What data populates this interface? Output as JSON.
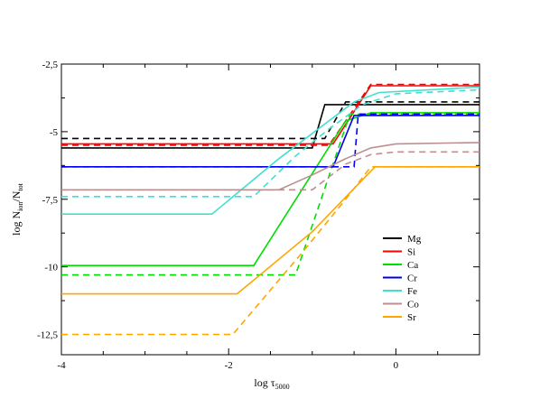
{
  "chart_data": {
    "type": "line",
    "title": "",
    "xlabel": {
      "main": "log τ",
      "sub": "5000"
    },
    "ylabel": {
      "p1": "log N",
      "sub1": "ion",
      "p2": "/N",
      "sub2": "tot"
    },
    "xlim": [
      -4,
      1
    ],
    "ylim": [
      -13.25,
      -2.5
    ],
    "xticks": [
      -4,
      -2,
      0
    ],
    "xtick_labels": [
      "-4",
      "-2",
      "0"
    ],
    "yticks": [
      -2.5,
      -5,
      -7.5,
      -10,
      -12.5
    ],
    "ytick_labels": [
      "-2,5",
      "-5",
      "-7,5",
      "-10",
      "-12,5"
    ],
    "grid": false,
    "legend_position": "lower-right",
    "series": [
      {
        "name": "Mg",
        "color": "#000000",
        "solid": [
          [
            -4,
            -5.6
          ],
          [
            -1.0,
            -5.6
          ],
          [
            -0.85,
            -4.0
          ],
          [
            1,
            -4.0
          ]
        ],
        "dashed": [
          [
            -4,
            -5.25
          ],
          [
            -0.85,
            -5.25
          ],
          [
            -0.6,
            -3.9
          ],
          [
            1,
            -3.9
          ]
        ]
      },
      {
        "name": "Si",
        "color": "#ff0000",
        "solid": [
          [
            -4,
            -5.45
          ],
          [
            -0.75,
            -5.45
          ],
          [
            -0.3,
            -3.3
          ],
          [
            1,
            -3.3
          ]
        ],
        "dashed": [
          [
            -4,
            -5.5
          ],
          [
            -0.8,
            -5.5
          ],
          [
            -0.3,
            -3.25
          ],
          [
            1,
            -3.25
          ]
        ]
      },
      {
        "name": "Ca",
        "color": "#00dd00",
        "solid": [
          [
            -4,
            -9.95
          ],
          [
            -1.7,
            -9.95
          ],
          [
            -0.6,
            -4.6
          ],
          [
            -0.3,
            -4.3
          ],
          [
            1,
            -4.3
          ]
        ],
        "dashed": [
          [
            -4,
            -10.3
          ],
          [
            -1.2,
            -10.3
          ],
          [
            -0.55,
            -4.35
          ],
          [
            1,
            -4.35
          ]
        ]
      },
      {
        "name": "Cr",
        "color": "#0000ee",
        "solid": [
          [
            -4,
            -6.3
          ],
          [
            -0.75,
            -6.3
          ],
          [
            -0.5,
            -4.4
          ],
          [
            1,
            -4.4
          ]
        ],
        "dashed": [
          [
            -4,
            -6.3
          ],
          [
            -0.5,
            -6.3
          ],
          [
            -0.45,
            -4.35
          ],
          [
            1,
            -4.35
          ]
        ]
      },
      {
        "name": "Fe",
        "color": "#40e0d0",
        "solid": [
          [
            -4,
            -8.05
          ],
          [
            -2.2,
            -8.05
          ],
          [
            -1.4,
            -6.0
          ],
          [
            -0.8,
            -4.6
          ],
          [
            -0.5,
            -3.9
          ],
          [
            -0.2,
            -3.55
          ],
          [
            1,
            -3.35
          ]
        ],
        "dashed": [
          [
            -4,
            -7.4
          ],
          [
            -1.7,
            -7.4
          ],
          [
            -1.2,
            -5.9
          ],
          [
            -0.8,
            -4.9
          ],
          [
            -0.4,
            -4.0
          ],
          [
            0,
            -3.6
          ],
          [
            1,
            -3.45
          ]
        ]
      },
      {
        "name": "Co",
        "color": "#bc8f8f",
        "solid": [
          [
            -4,
            -7.15
          ],
          [
            -1.4,
            -7.15
          ],
          [
            -1.0,
            -6.6
          ],
          [
            -0.6,
            -6.0
          ],
          [
            -0.3,
            -5.6
          ],
          [
            0,
            -5.45
          ],
          [
            1,
            -5.4
          ]
        ],
        "dashed": [
          [
            -4,
            -7.15
          ],
          [
            -1.0,
            -7.15
          ],
          [
            -0.6,
            -6.2
          ],
          [
            -0.3,
            -5.85
          ],
          [
            0,
            -5.75
          ],
          [
            1,
            -5.75
          ]
        ]
      },
      {
        "name": "Sr",
        "color": "#ffa500",
        "solid": [
          [
            -4,
            -11.0
          ],
          [
            -1.9,
            -11.0
          ],
          [
            -1.0,
            -8.7
          ],
          [
            -0.5,
            -7.1
          ],
          [
            -0.25,
            -6.3
          ],
          [
            1,
            -6.3
          ]
        ],
        "dashed": [
          [
            -4,
            -12.5
          ],
          [
            -1.95,
            -12.5
          ],
          [
            -1.1,
            -9.4
          ],
          [
            -0.55,
            -7.3
          ],
          [
            -0.3,
            -6.3
          ],
          [
            1,
            -6.3
          ]
        ]
      }
    ]
  }
}
